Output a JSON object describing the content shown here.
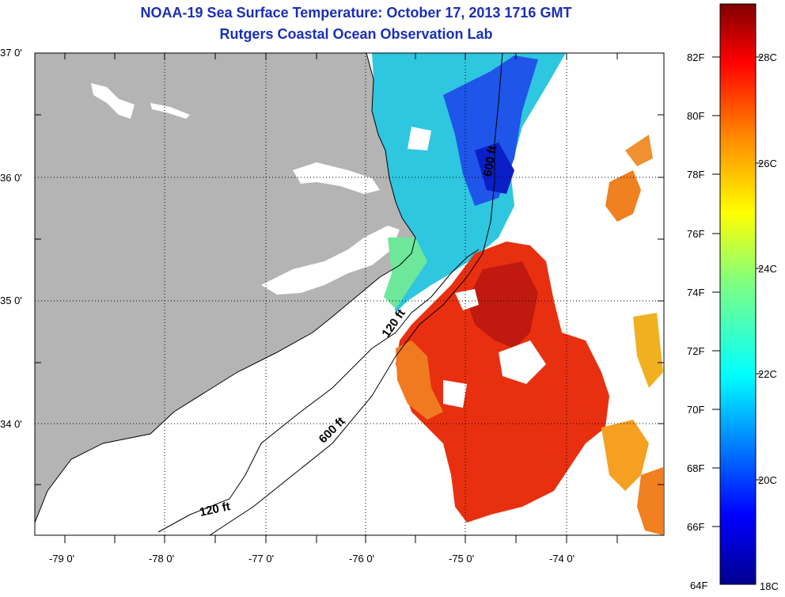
{
  "title": {
    "line1": "NOAA-19 Sea Surface Temperature:  October 17, 2013 1716 GMT",
    "line2": "Rutgers Coastal Ocean Observation Lab"
  },
  "map": {
    "lat_labels": [
      "37 0'",
      "36 0'",
      "35 0'",
      "34 0'"
    ],
    "lon_labels": [
      "-79 0'",
      "-78 0'",
      "-77 0'",
      "-76 0'",
      "-75 0'",
      "-74 0'"
    ],
    "contour_labels": [
      "600 ft",
      "120 ft",
      "600 ft",
      "120 ft"
    ],
    "colors": {
      "land": "#b4b4b4",
      "frame": "#000000"
    }
  },
  "colorbar": {
    "fahrenheit": [
      "82F",
      "80F",
      "78F",
      "76F",
      "74F",
      "72F",
      "70F",
      "68F",
      "66F",
      "64F"
    ],
    "celsius": [
      "28C",
      "26C",
      "24C",
      "22C",
      "20C",
      "18C"
    ],
    "colors": [
      "#7f0000",
      "#ff0000",
      "#ff8000",
      "#ffff00",
      "#80ff80",
      "#00ffff",
      "#0080ff",
      "#0000ff",
      "#00008f"
    ]
  }
}
